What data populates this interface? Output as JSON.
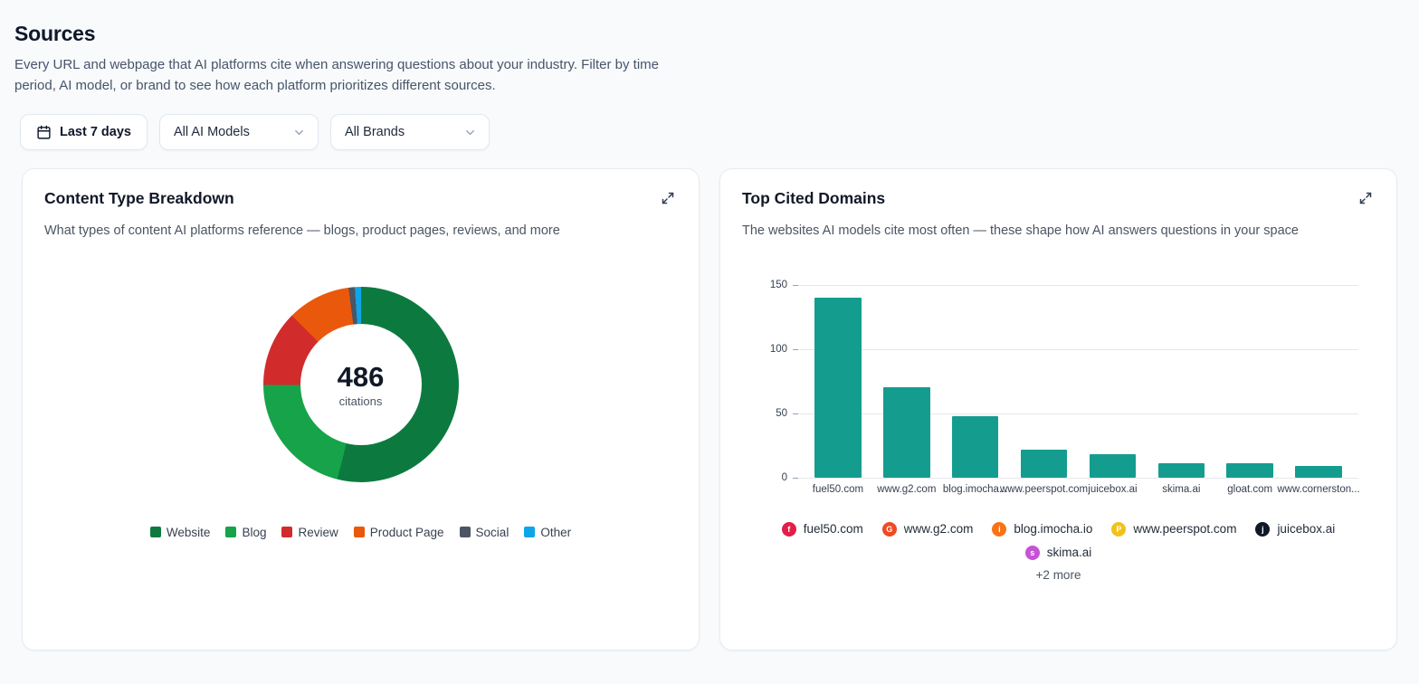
{
  "page": {
    "title": "Sources",
    "description": "Every URL and webpage that AI platforms cite when answering questions about your industry. Filter by time period, AI model, or brand to see how each platform prioritizes different sources."
  },
  "filters": {
    "date_range": "Last 7 days",
    "ai_model": "All AI Models",
    "brand": "All Brands"
  },
  "content_type_card": {
    "title": "Content Type Breakdown",
    "subtitle": "What types of content AI platforms reference — blogs, product pages, reviews, and more"
  },
  "top_domains_card": {
    "title": "Top Cited Domains",
    "subtitle": "The websites AI models cite most often — these shape how AI answers questions in your space",
    "more_label": "+2 more",
    "chips": [
      {
        "label": "fuel50.com",
        "icon": "fuel50-favicon",
        "color": "#e11d48",
        "letter": "f"
      },
      {
        "label": "www.g2.com",
        "icon": "g2-favicon",
        "color": "#ef4a23",
        "letter": "G"
      },
      {
        "label": "blog.imocha.io",
        "icon": "imocha-favicon",
        "color": "#f97316",
        "letter": "i"
      },
      {
        "label": "www.peerspot.com",
        "icon": "peerspot-favicon",
        "color": "#f2c21a",
        "letter": "P"
      },
      {
        "label": "juicebox.ai",
        "icon": "juicebox-favicon",
        "color": "#111827",
        "letter": "j"
      },
      {
        "label": "skima.ai",
        "icon": "skima-favicon",
        "color": "#c653d6",
        "letter": "s"
      }
    ]
  },
  "chart_data": [
    {
      "type": "pie",
      "title": "Content Type Breakdown",
      "donut": true,
      "center_value": "486",
      "center_label": "citations",
      "labels": [
        "Website",
        "Blog",
        "Review",
        "Product Page",
        "Social",
        "Other"
      ],
      "values": [
        262,
        102,
        61,
        51,
        5,
        5
      ],
      "colors": [
        "#0c7a3f",
        "#16a34a",
        "#d22b2b",
        "#ea580c",
        "#4b5563",
        "#0ea5e9"
      ],
      "legend_position": "bottom"
    },
    {
      "type": "bar",
      "title": "Top Cited Domains",
      "categories": [
        "fuel50.com",
        "www.g2.com",
        "blog.imocha...",
        "www.peerspot.com",
        "juicebox.ai",
        "skima.ai",
        "gloat.com",
        "www.cornerston..."
      ],
      "values": [
        140,
        70,
        48,
        22,
        18,
        11,
        11,
        9
      ],
      "color": "#149d8f",
      "xlabel": "",
      "ylabel": "",
      "ylim": [
        0,
        150
      ],
      "yticks": [
        0,
        50,
        100,
        150
      ],
      "grid": true
    }
  ]
}
